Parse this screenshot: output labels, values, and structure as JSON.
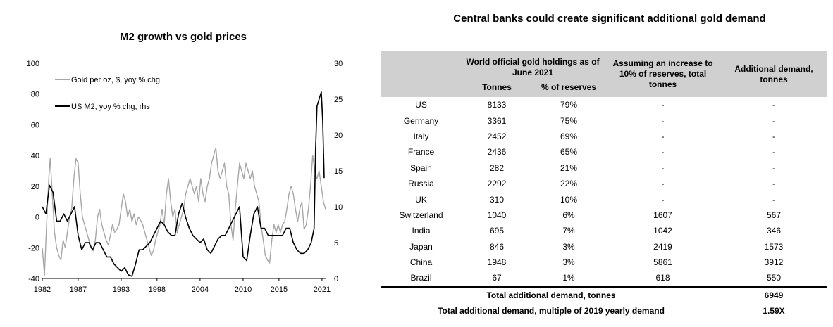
{
  "left_chart": {
    "title": "M2 growth vs gold prices",
    "legend": [
      {
        "label": "Gold per oz, $, yoy % chg",
        "color": "#a6a6a6"
      },
      {
        "label": "US M2, yoy % chg, rhs",
        "color": "#000000"
      }
    ],
    "x_ticks": [
      "1982",
      "1987",
      "1993",
      "1998",
      "2004",
      "2010",
      "2015",
      "2021"
    ],
    "y_left_ticks": [
      "100",
      "80",
      "60",
      "40",
      "20",
      "0",
      "-20",
      "-40"
    ],
    "y_right_ticks": [
      "30",
      "25",
      "20",
      "15",
      "10",
      "5",
      "0"
    ]
  },
  "chart_data": {
    "type": "line",
    "title": "M2 growth vs gold prices",
    "xlabel": "",
    "ylabel": "",
    "xlim": [
      1982,
      2021.5
    ],
    "ylim": [
      -40,
      100
    ],
    "y2lim": [
      0,
      30
    ],
    "grid": false,
    "legend_position": "top-left",
    "series": [
      {
        "name": "Gold per oz, $, yoy % chg",
        "axis": "left",
        "color": "#a6a6a6",
        "x": [
          1982.0,
          1982.3,
          1982.6,
          1982.9,
          1983.1,
          1983.4,
          1983.7,
          1984.0,
          1984.3,
          1984.6,
          1984.9,
          1985.2,
          1985.5,
          1985.8,
          1986.1,
          1986.4,
          1986.7,
          1987.0,
          1987.3,
          1987.6,
          1987.9,
          1988.2,
          1988.5,
          1988.8,
          1989.1,
          1989.4,
          1989.7,
          1990.0,
          1990.3,
          1990.6,
          1990.9,
          1991.2,
          1991.5,
          1991.8,
          1992.1,
          1992.4,
          1992.7,
          1993.0,
          1993.3,
          1993.6,
          1993.9,
          1994.2,
          1994.5,
          1994.8,
          1995.1,
          1995.4,
          1995.7,
          1996.0,
          1996.3,
          1996.6,
          1996.9,
          1997.2,
          1997.5,
          1997.8,
          1998.1,
          1998.4,
          1998.7,
          1999.0,
          1999.3,
          1999.6,
          1999.9,
          2000.2,
          2000.5,
          2000.8,
          2001.1,
          2001.4,
          2001.7,
          2002.0,
          2002.3,
          2002.6,
          2002.9,
          2003.2,
          2003.5,
          2003.8,
          2004.1,
          2004.4,
          2004.7,
          2005.0,
          2005.3,
          2005.6,
          2005.9,
          2006.2,
          2006.5,
          2006.8,
          2007.1,
          2007.4,
          2007.7,
          2008.0,
          2008.3,
          2008.6,
          2008.9,
          2009.2,
          2009.5,
          2009.8,
          2010.1,
          2010.4,
          2010.7,
          2011.0,
          2011.3,
          2011.6,
          2011.9,
          2012.2,
          2012.5,
          2012.8,
          2013.1,
          2013.4,
          2013.7,
          2014.0,
          2014.3,
          2014.6,
          2014.9,
          2015.2,
          2015.5,
          2015.8,
          2016.1,
          2016.4,
          2016.7,
          2017.0,
          2017.3,
          2017.6,
          2017.9,
          2018.2,
          2018.5,
          2018.8,
          2019.1,
          2019.4,
          2019.7,
          2020.0,
          2020.3,
          2020.6,
          2020.9,
          2021.2,
          2021.5
        ],
        "y": [
          -20,
          -38,
          -5,
          25,
          38,
          15,
          -10,
          -20,
          -25,
          -28,
          -15,
          -20,
          -10,
          0,
          5,
          25,
          38,
          35,
          15,
          0,
          -5,
          -10,
          -15,
          -20,
          -22,
          -15,
          0,
          5,
          -5,
          -10,
          -15,
          -18,
          -12,
          -5,
          -10,
          -8,
          -5,
          5,
          15,
          10,
          0,
          5,
          -3,
          2,
          -5,
          0,
          -2,
          -5,
          -10,
          -15,
          -20,
          -25,
          -22,
          -15,
          -10,
          -5,
          5,
          -5,
          15,
          25,
          10,
          0,
          5,
          -10,
          -5,
          0,
          5,
          15,
          20,
          25,
          20,
          15,
          20,
          10,
          25,
          15,
          10,
          20,
          25,
          35,
          40,
          45,
          30,
          25,
          30,
          35,
          20,
          15,
          -5,
          -15,
          5,
          20,
          35,
          30,
          25,
          35,
          30,
          25,
          30,
          20,
          15,
          10,
          -5,
          -15,
          -25,
          -28,
          -30,
          -15,
          -5,
          -10,
          -5,
          -10,
          -5,
          -3,
          5,
          15,
          20,
          15,
          5,
          -3,
          5,
          10,
          -8,
          -5,
          5,
          20,
          40,
          30,
          25,
          30,
          20,
          10,
          5
        ]
      },
      {
        "name": "US M2, yoy % chg, rhs",
        "axis": "right",
        "color": "#000000",
        "x": [
          1982.0,
          1982.5,
          1983.0,
          1983.5,
          1984.0,
          1984.5,
          1985.0,
          1985.5,
          1986.0,
          1986.5,
          1987.0,
          1987.5,
          1988.0,
          1988.5,
          1989.0,
          1989.5,
          1990.0,
          1990.5,
          1991.0,
          1991.5,
          1992.0,
          1992.5,
          1993.0,
          1993.5,
          1994.0,
          1994.5,
          1995.0,
          1995.5,
          1996.0,
          1996.5,
          1997.0,
          1997.5,
          1998.0,
          1998.5,
          1999.0,
          1999.5,
          2000.0,
          2000.5,
          2001.0,
          2001.5,
          2002.0,
          2002.5,
          2003.0,
          2003.5,
          2004.0,
          2004.5,
          2005.0,
          2005.5,
          2006.0,
          2006.5,
          2007.0,
          2007.5,
          2008.0,
          2008.5,
          2009.0,
          2009.5,
          2010.0,
          2010.5,
          2011.0,
          2011.5,
          2012.0,
          2012.5,
          2013.0,
          2013.5,
          2014.0,
          2014.5,
          2015.0,
          2015.5,
          2016.0,
          2016.5,
          2017.0,
          2017.5,
          2018.0,
          2018.5,
          2019.0,
          2019.5,
          2019.9,
          2020.1,
          2020.3,
          2020.6,
          2020.9,
          2021.1,
          2021.3
        ],
        "y": [
          10,
          9,
          13,
          12,
          8,
          8,
          9,
          8,
          9,
          10,
          6,
          4,
          5,
          5,
          4,
          5,
          5,
          4,
          3,
          3,
          2,
          1.5,
          1,
          1.5,
          0.5,
          0.3,
          2,
          4,
          4,
          4.5,
          5,
          6,
          7,
          8,
          7.5,
          6.5,
          6,
          6,
          9,
          10.5,
          8.5,
          7,
          6,
          5.5,
          5,
          5.5,
          4,
          3.5,
          4.5,
          5.5,
          6,
          6,
          7,
          8,
          9,
          10,
          3,
          2.5,
          6,
          9,
          10,
          7,
          7,
          6,
          6,
          6,
          6,
          6,
          7,
          7,
          5,
          4,
          3.5,
          3.5,
          4,
          5,
          7,
          18,
          24,
          25,
          26,
          22,
          14
        ]
      }
    ]
  },
  "table": {
    "title": "Central banks could create significant additional gold demand",
    "header": {
      "group_holdings": "World official gold holdings as of June 2021",
      "col_tonnes": "Tonnes",
      "col_pct": "% of reserves",
      "col_assume": "Assuming an increase to 10% of reserves, total tonnes",
      "col_additional": "Additional demand, tonnes"
    },
    "rows": [
      {
        "country": "US",
        "tonnes": "8133",
        "pct": "79%",
        "total": "-",
        "additional": "-"
      },
      {
        "country": "Germany",
        "tonnes": "3361",
        "pct": "75%",
        "total": "-",
        "additional": "-"
      },
      {
        "country": "Italy",
        "tonnes": "2452",
        "pct": "69%",
        "total": "-",
        "additional": "-"
      },
      {
        "country": "France",
        "tonnes": "2436",
        "pct": "65%",
        "total": "-",
        "additional": "-"
      },
      {
        "country": "Spain",
        "tonnes": "282",
        "pct": "21%",
        "total": "-",
        "additional": "-"
      },
      {
        "country": "Russia",
        "tonnes": "2292",
        "pct": "22%",
        "total": "-",
        "additional": "-"
      },
      {
        "country": "UK",
        "tonnes": "310",
        "pct": "10%",
        "total": "-",
        "additional": "-"
      },
      {
        "country": "Switzerland",
        "tonnes": "1040",
        "pct": "6%",
        "total": "1607",
        "additional": "567"
      },
      {
        "country": "India",
        "tonnes": "695",
        "pct": "7%",
        "total": "1042",
        "additional": "346"
      },
      {
        "country": "Japan",
        "tonnes": "846",
        "pct": "3%",
        "total": "2419",
        "additional": "1573"
      },
      {
        "country": "China",
        "tonnes": "1948",
        "pct": "3%",
        "total": "5861",
        "additional": "3912"
      },
      {
        "country": "Brazil",
        "tonnes": "67",
        "pct": "1%",
        "total": "618",
        "additional": "550"
      }
    ],
    "footer": {
      "total_label": "Total additional demand, tonnes",
      "total_value": "6949",
      "multiple_label": "Total additional demand, multiple of 2019 yearly demand",
      "multiple_value": "1.59X"
    }
  }
}
